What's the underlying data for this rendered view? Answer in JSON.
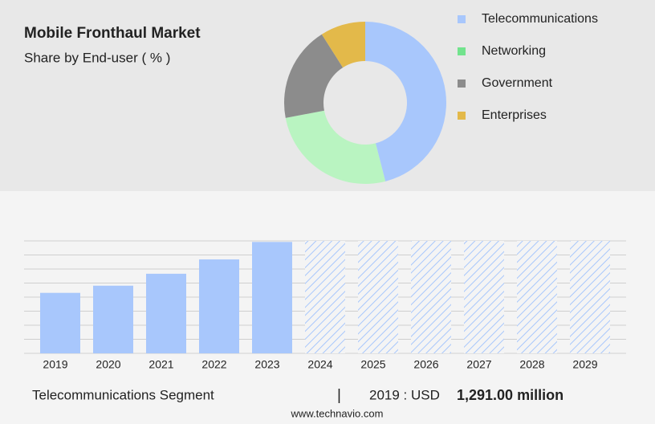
{
  "chart_data": [
    {
      "type": "donut",
      "title": "Mobile Fronthaul Market",
      "subtitle": "Share by End-user ( % )",
      "categories": [
        "Telecommunications",
        "Networking",
        "Government",
        "Enterprises"
      ],
      "values": [
        46,
        26,
        19,
        9
      ],
      "colors": [
        "#a8c7fc",
        "#b9f4c1",
        "#8c8c8c",
        "#e3b94a"
      ],
      "legend_colors": [
        "#a8c7fc",
        "#72e38d",
        "#8c8c8c",
        "#e3b94a"
      ]
    },
    {
      "type": "bar",
      "categories": [
        "2019",
        "2020",
        "2021",
        "2022",
        "2023",
        "2024",
        "2025",
        "2026",
        "2027",
        "2028",
        "2029"
      ],
      "values": [
        1291,
        1444,
        1699,
        2005,
        2378,
        null,
        null,
        null,
        null,
        null,
        null
      ],
      "color": "#a8c7fc",
      "ylim": [
        0,
        2400
      ],
      "yticks": [
        0,
        300,
        600,
        900,
        1200,
        1500,
        1800,
        2100,
        2400
      ],
      "grid": true
    }
  ],
  "footer": {
    "segment": "Telecommunications Segment",
    "separator": "|",
    "year_label": "2019 : USD",
    "value_label": "1,291.00 million",
    "source": "www.technavio.com"
  }
}
